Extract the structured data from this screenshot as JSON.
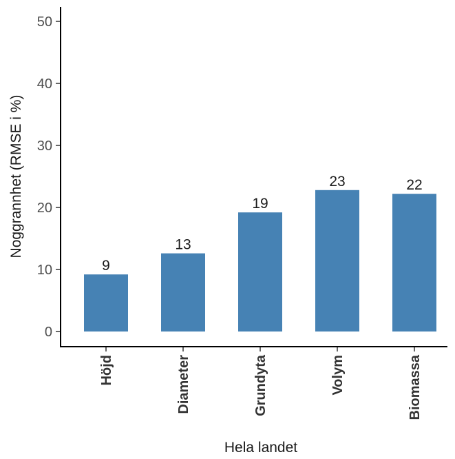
{
  "chart_data": {
    "type": "bar",
    "categories": [
      "Höjd",
      "Diameter",
      "Grundyta",
      "Volym",
      "Biomassa"
    ],
    "values": [
      9.2,
      12.6,
      19.2,
      22.8,
      22.2
    ],
    "data_labels": [
      "9",
      "13",
      "19",
      "23",
      "22"
    ],
    "title": "",
    "xlabel": "Hela landet",
    "ylabel": "Noggrannhet (RMSE i %)",
    "ylim": [
      0,
      52
    ],
    "yticks": [
      0,
      10,
      20,
      30,
      40,
      50
    ],
    "grid": false,
    "colors": {
      "bar": "#4682b4",
      "axis": "#000000"
    }
  }
}
